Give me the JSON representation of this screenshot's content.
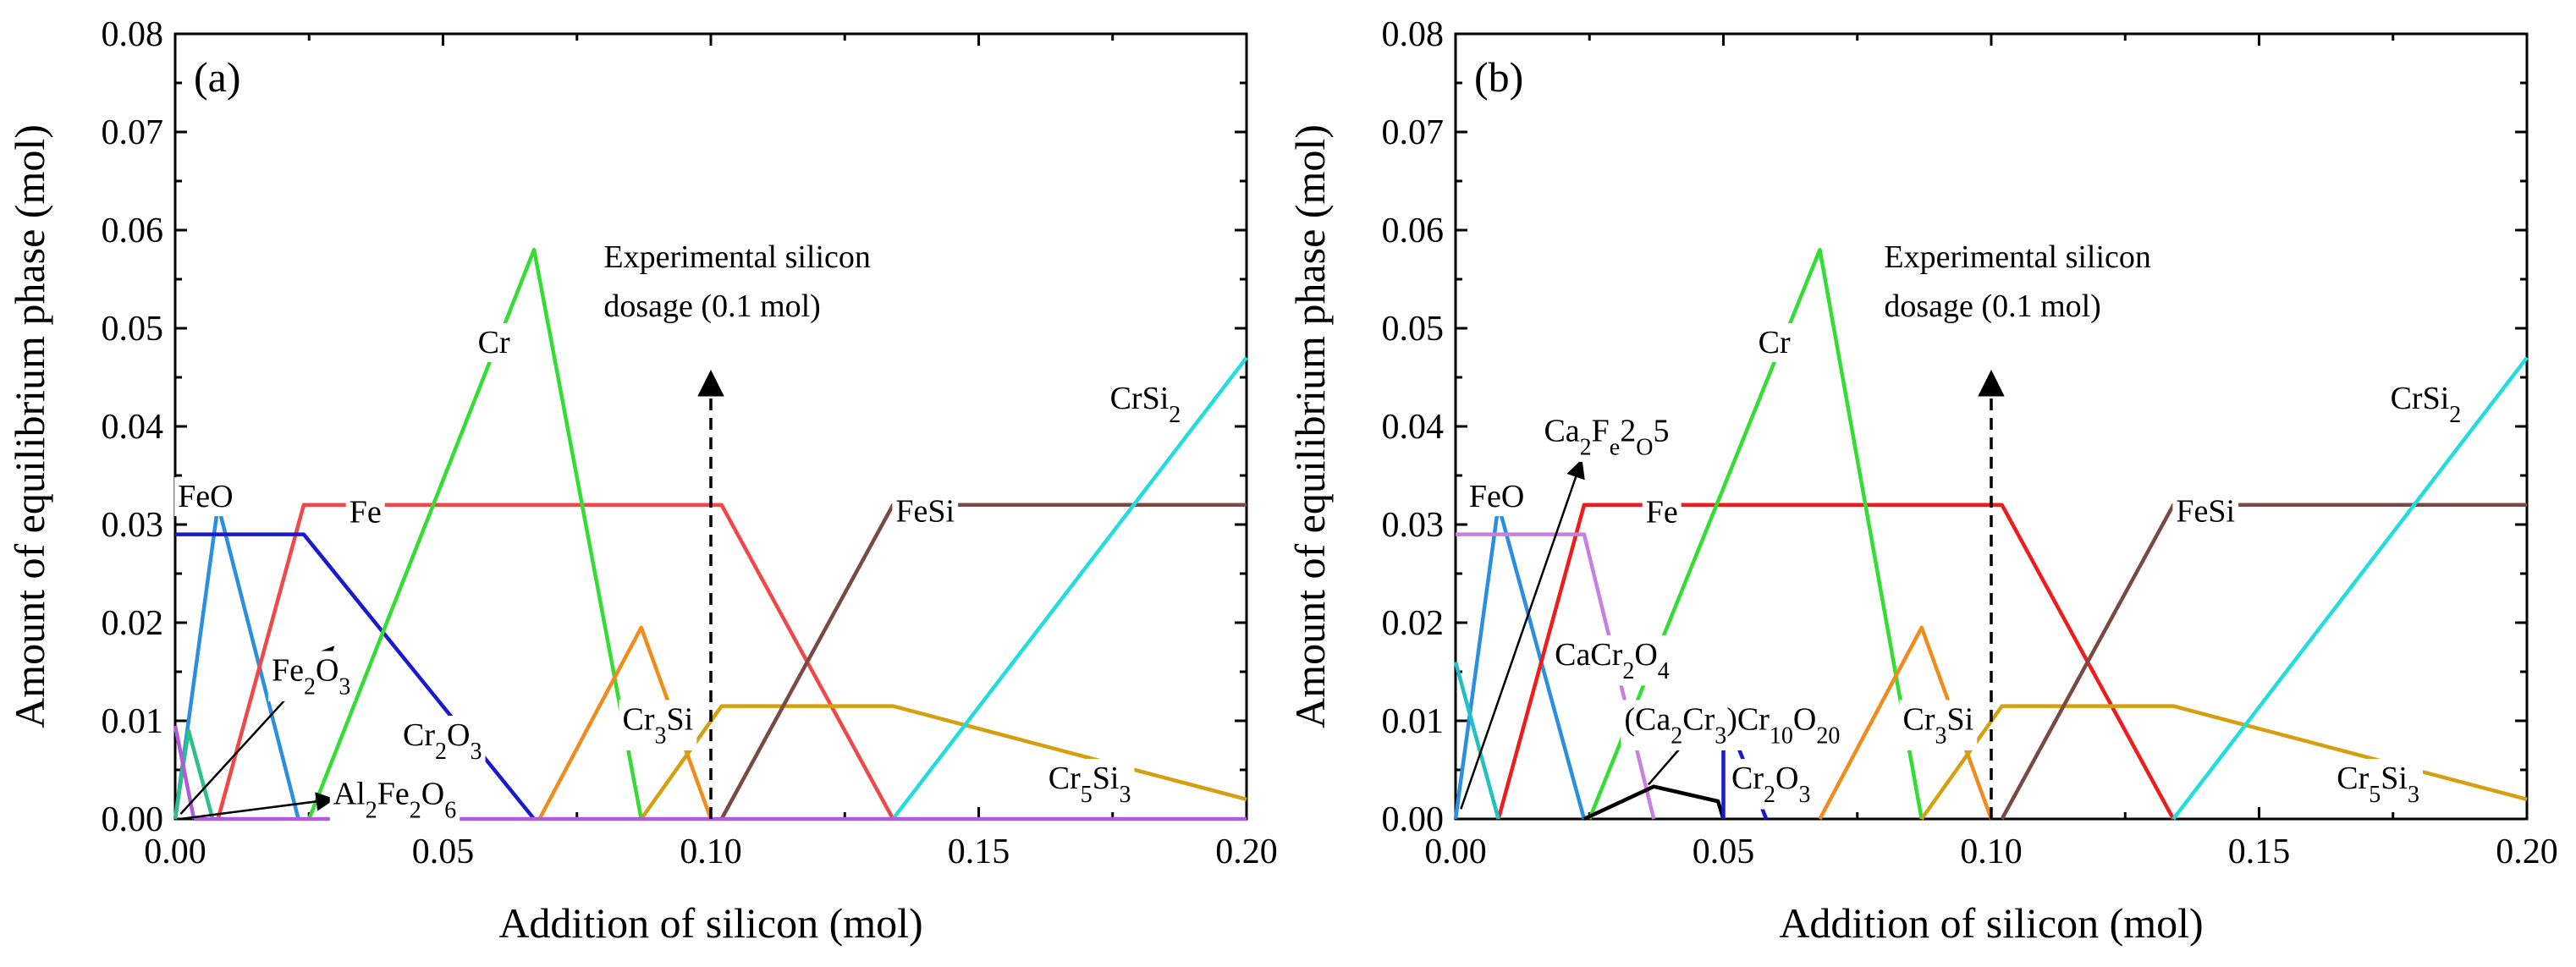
{
  "chart_data": [
    {
      "type": "line",
      "panel_label": "(a)",
      "xlabel": "Addition of silicon (mol)",
      "ylabel": "Amount of equilibrium phase (mol)",
      "xlim": [
        0.0,
        0.2
      ],
      "ylim": [
        0.0,
        0.08
      ],
      "xticks": [
        "0.00",
        "0.05",
        "0.10",
        "0.15",
        "0.20"
      ],
      "xtick_values": [
        0.0,
        0.05,
        0.1,
        0.15,
        0.2
      ],
      "yticks": [
        "0.00",
        "0.01",
        "0.02",
        "0.03",
        "0.04",
        "0.05",
        "0.06",
        "0.07",
        "0.08"
      ],
      "ytick_values": [
        0.0,
        0.01,
        0.02,
        0.03,
        0.04,
        0.05,
        0.06,
        0.07,
        0.08
      ],
      "vline": {
        "x": 0.1,
        "y_top": 0.0455,
        "text_line1": "Experimental silicon",
        "text_line2": "dosage (0.1 mol)",
        "text_x": 0.08,
        "text_y1": 0.0562,
        "text_y2": 0.0512
      },
      "series": [
        {
          "name": "FeO",
          "color": "#2a8fe0",
          "points": [
            [
              0.0,
              0.0
            ],
            [
              0.008,
              0.032
            ],
            [
              0.023,
              0.0
            ]
          ]
        },
        {
          "name": "Fe",
          "color": "#f04848",
          "points": [
            [
              0.008,
              0.0
            ],
            [
              0.024,
              0.032
            ],
            [
              0.102,
              0.032
            ],
            [
              0.134,
              0.0
            ]
          ]
        },
        {
          "name": "Cr2O3",
          "color": "#1a1acc",
          "points": [
            [
              0.0,
              0.029
            ],
            [
              0.024,
              0.029
            ],
            [
              0.067,
              0.0
            ]
          ]
        },
        {
          "name": "Fe2O3",
          "color": "#2bbf8a",
          "points": [
            [
              0.0,
              0.0
            ],
            [
              0.0025,
              0.009
            ],
            [
              0.007,
              0.0
            ]
          ]
        },
        {
          "name": "Al2Fe2O6",
          "color": "#b25bd9",
          "points": [
            [
              0.0,
              0.0095
            ],
            [
              0.0035,
              0.0
            ]
          ]
        },
        {
          "name": "Cr",
          "color": "#33dd33",
          "points": [
            [
              0.025,
              0.0
            ],
            [
              0.067,
              0.058
            ],
            [
              0.087,
              0.0
            ]
          ]
        },
        {
          "name": "Cr3Si",
          "color": "#f08c1e",
          "points": [
            [
              0.068,
              0.0
            ],
            [
              0.087,
              0.0195
            ],
            [
              0.1,
              0.0
            ]
          ]
        },
        {
          "name": "Cr5Si3",
          "color": "#d4a010",
          "points": [
            [
              0.087,
              0.0
            ],
            [
              0.102,
              0.0115
            ],
            [
              0.134,
              0.0115
            ],
            [
              0.2,
              0.002
            ]
          ]
        },
        {
          "name": "FeSi",
          "color": "#7a4a42",
          "points": [
            [
              0.102,
              0.0
            ],
            [
              0.134,
              0.032
            ],
            [
              0.2,
              0.032
            ]
          ]
        },
        {
          "name": "CrSi2",
          "color": "#22dddd",
          "points": [
            [
              0.134,
              0.0
            ],
            [
              0.2,
              0.047
            ]
          ]
        },
        {
          "name": "baseline",
          "color": "#b25bd9",
          "points": [
            [
              0.0035,
              0.0
            ],
            [
              0.2,
              0.0
            ]
          ]
        }
      ],
      "labels": [
        {
          "text": "FeO",
          "sub": [],
          "x": 0.0005,
          "y": 0.0318
        },
        {
          "text": "Fe",
          "sub": [],
          "x": 0.0325,
          "y": 0.0302
        },
        {
          "text": "Cr",
          "sub": [],
          "x": 0.0565,
          "y": 0.0475
        },
        {
          "text": "CrSi2",
          "sub": [
            4
          ],
          "x": 0.1745,
          "y": 0.0418
        },
        {
          "text": "FeSi",
          "sub": [],
          "x": 0.1345,
          "y": 0.0303
        },
        {
          "text": "Fe2O3",
          "sub": [
            2,
            4
          ],
          "x": 0.018,
          "y": 0.0141
        },
        {
          "text": "Cr2O3",
          "sub": [
            2,
            4
          ],
          "x": 0.0425,
          "y": 0.0075
        },
        {
          "text": "Cr3Si",
          "sub": [
            2
          ],
          "x": 0.0835,
          "y": 0.0091
        },
        {
          "text": "Al2Fe2O6",
          "sub": [
            2,
            5,
            7
          ],
          "x": 0.0295,
          "y": 0.0015
        },
        {
          "text": "Cr5Si3",
          "sub": [
            2,
            5
          ],
          "x": 0.163,
          "y": 0.0031
        }
      ],
      "arrows": [
        {
          "x1": 0.001,
          "y1": 0.0005,
          "x2": 0.0295,
          "y2": 0.0175
        },
        {
          "x1": 0.001,
          "y1": 0.0,
          "x2": 0.0295,
          "y2": 0.002
        }
      ]
    },
    {
      "type": "line",
      "panel_label": "(b)",
      "xlabel": "Addition of silicon (mol)",
      "ylabel": "Amount of equilibrium phase (mol)",
      "xlim": [
        0.0,
        0.2
      ],
      "ylim": [
        0.0,
        0.08
      ],
      "xticks": [
        "0.00",
        "0.05",
        "0.10",
        "0.15",
        "0.20"
      ],
      "xtick_values": [
        0.0,
        0.05,
        0.1,
        0.15,
        0.2
      ],
      "yticks": [
        "0.00",
        "0.01",
        "0.02",
        "0.03",
        "0.04",
        "0.05",
        "0.06",
        "0.07",
        "0.08"
      ],
      "ytick_values": [
        0.0,
        0.01,
        0.02,
        0.03,
        0.04,
        0.05,
        0.06,
        0.07,
        0.08
      ],
      "vline": {
        "x": 0.1,
        "y_top": 0.0455,
        "text_line1": "Experimental silicon",
        "text_line2": "dosage (0.1 mol)",
        "text_x": 0.08,
        "text_y1": 0.0562,
        "text_y2": 0.0512
      },
      "series": [
        {
          "name": "FeO",
          "color": "#2a8fe0",
          "points": [
            [
              0.0,
              0.0
            ],
            [
              0.008,
              0.032
            ],
            [
              0.024,
              0.0
            ]
          ]
        },
        {
          "name": "Fe",
          "color": "#ee1c1c",
          "points": [
            [
              0.008,
              0.0
            ],
            [
              0.024,
              0.032
            ],
            [
              0.102,
              0.032
            ],
            [
              0.134,
              0.0
            ]
          ]
        },
        {
          "name": "CaCr2O4",
          "color": "#c87fe0",
          "points": [
            [
              0.0,
              0.029
            ],
            [
              0.024,
              0.029
            ],
            [
              0.037,
              0.0
            ]
          ]
        },
        {
          "name": "Ca2Fe2O5",
          "color": "#22c0c0",
          "points": [
            [
              0.0,
              0.016
            ],
            [
              0.008,
              0.0
            ]
          ]
        },
        {
          "name": "Cr",
          "color": "#33dd33",
          "points": [
            [
              0.025,
              0.0
            ],
            [
              0.068,
              0.058
            ],
            [
              0.087,
              0.0
            ]
          ]
        },
        {
          "name": "(Ca2Cr3)Cr10O20",
          "color": "#000000",
          "points": [
            [
              0.024,
              0.0
            ],
            [
              0.037,
              0.0033
            ],
            [
              0.049,
              0.0018
            ],
            [
              0.05,
              0.0
            ]
          ]
        },
        {
          "name": "Cr2O3",
          "color": "#1a1acc",
          "points": [
            [
              0.05,
              0.0
            ],
            [
              0.05,
              0.0112
            ],
            [
              0.058,
              0.0
            ]
          ]
        },
        {
          "name": "Cr3Si",
          "color": "#f08c1e",
          "points": [
            [
              0.068,
              0.0
            ],
            [
              0.087,
              0.0195
            ],
            [
              0.1,
              0.0
            ]
          ]
        },
        {
          "name": "Cr5Si3",
          "color": "#d4a010",
          "points": [
            [
              0.087,
              0.0
            ],
            [
              0.102,
              0.0115
            ],
            [
              0.134,
              0.0115
            ],
            [
              0.2,
              0.002
            ]
          ]
        },
        {
          "name": "FeSi",
          "color": "#7a4a42",
          "points": [
            [
              0.102,
              0.0
            ],
            [
              0.134,
              0.032
            ],
            [
              0.2,
              0.032
            ]
          ]
        },
        {
          "name": "CrSi2",
          "color": "#22dddd",
          "points": [
            [
              0.134,
              0.0
            ],
            [
              0.2,
              0.047
            ]
          ]
        }
      ],
      "labels": [
        {
          "text": "FeO",
          "sub": [],
          "x": 0.0025,
          "y": 0.0318
        },
        {
          "text": "Fe",
          "sub": [],
          "x": 0.0355,
          "y": 0.0302
        },
        {
          "text": "Cr",
          "sub": [],
          "x": 0.0565,
          "y": 0.0475
        },
        {
          "text": "CrSi2",
          "sub": [
            4
          ],
          "x": 0.1745,
          "y": 0.0418
        },
        {
          "text": "FeSi",
          "sub": [],
          "x": 0.1345,
          "y": 0.0303
        },
        {
          "text": "Ca2Fe2O5",
          "sub": [
            2,
            4,
            6,
            8
          ],
          "x": 0.0165,
          "y": 0.0385
        },
        {
          "text": "CaCr2O4",
          "sub": [
            4,
            6
          ],
          "x": 0.0185,
          "y": 0.0157
        },
        {
          "text": "(Ca2Cr3)Cr10O20",
          "sub": [
            3,
            6,
            10,
            11,
            13,
            14
          ],
          "x": 0.0315,
          "y": 0.0091
        },
        {
          "text": "Cr2O3",
          "sub": [
            2,
            4
          ],
          "x": 0.0515,
          "y": 0.0031
        },
        {
          "text": "Cr3Si",
          "sub": [
            2
          ],
          "x": 0.0835,
          "y": 0.0091
        },
        {
          "text": "Cr5Si3",
          "sub": [
            2,
            5
          ],
          "x": 0.1645,
          "y": 0.0031
        }
      ],
      "arrows": [
        {
          "x1": 0.001,
          "y1": 0.001,
          "x2": 0.0235,
          "y2": 0.0365
        },
        {
          "x1": 0.036,
          "y1": 0.0035,
          "x2": 0.0475,
          "y2": 0.0107
        }
      ]
    }
  ]
}
